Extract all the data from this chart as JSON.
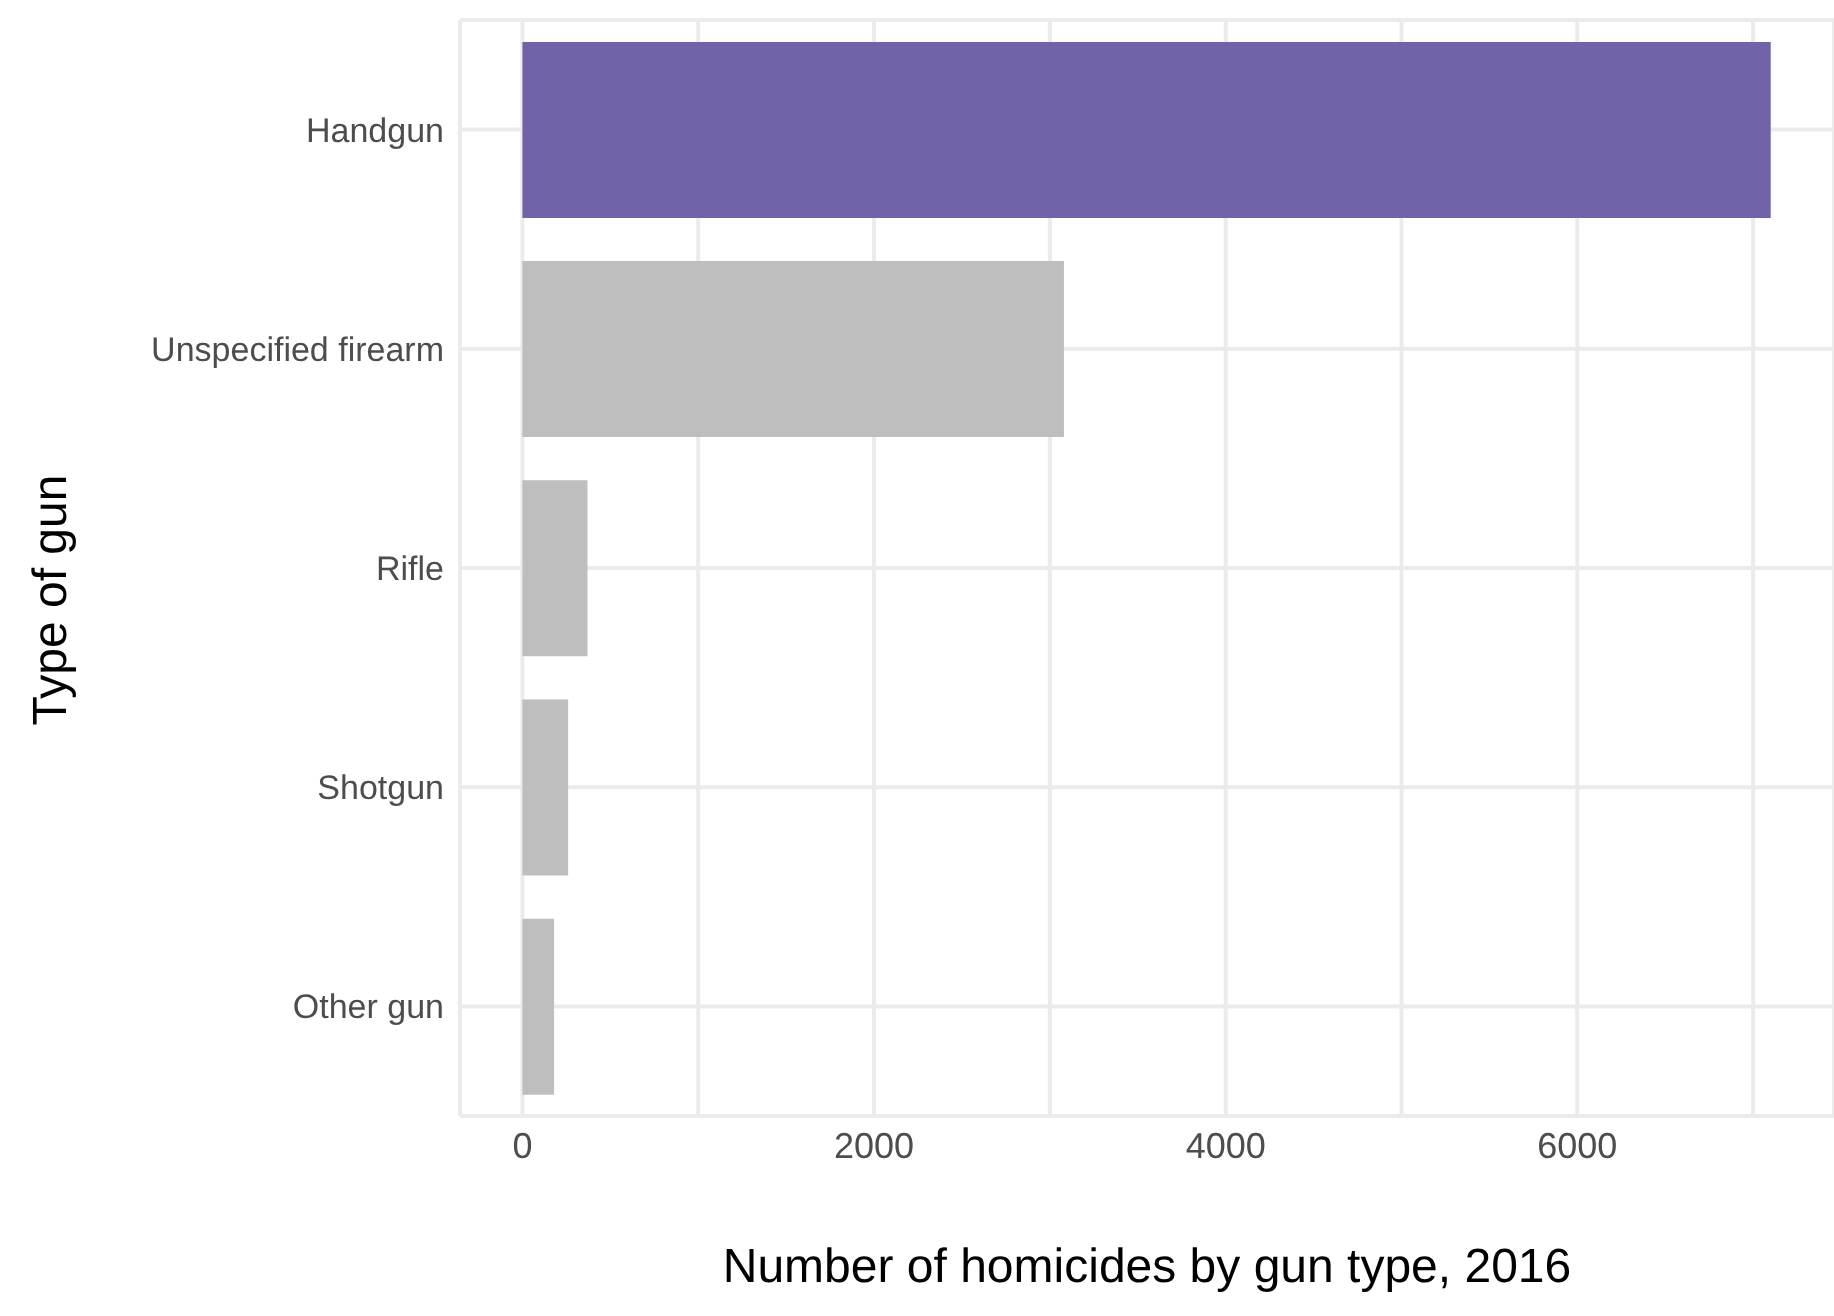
{
  "chart_data": {
    "type": "bar",
    "orientation": "horizontal",
    "xlabel": "Number of homicides by gun type, 2016",
    "ylabel": "Type of gun",
    "categories": [
      "Handgun",
      "Unspecified firearm",
      "Rifle",
      "Shotgun",
      "Other gun"
    ],
    "values": [
      7100,
      3080,
      370,
      260,
      180
    ],
    "colors": [
      "#7262a8",
      "#bebebe",
      "#bebebe",
      "#bebebe",
      "#bebebe"
    ],
    "xlim": [
      -355,
      7460
    ],
    "xticks": [
      0,
      {
        "value": 1000,
        "label": null
      },
      2000,
      {
        "value": 3000,
        "label": null
      },
      4000,
      {
        "value": 5000,
        "label": null
      },
      6000,
      {
        "value": 7000,
        "label": null
      }
    ],
    "grid": true,
    "legend": false
  }
}
